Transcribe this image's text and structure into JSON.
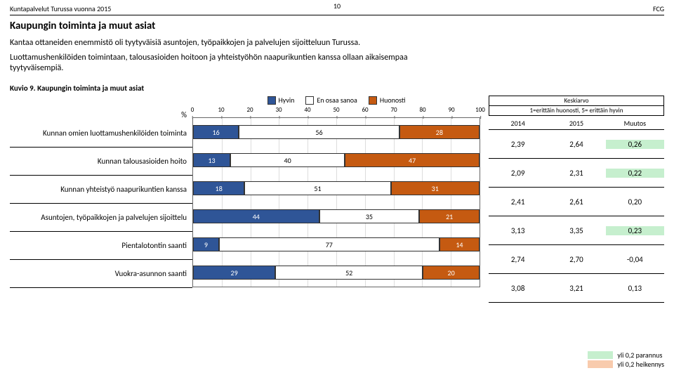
{
  "page_number": "10",
  "header_left": "Kuntapalvelut Turussa vuonna 2015",
  "header_right": "FCG",
  "title": "Kaupungin toiminta ja muut asiat",
  "intro1": "Kantaa ottaneiden enemmistö oli tyytyväisiä  asuntojen, työpaikkojen ja palvelujen sijoitteluun Turussa.",
  "intro2": "Luottamushenkilöiden toimintaan, talousasioiden hoitoon ja yhteistyöhön naapurikuntien kanssa ollaan aikaisempaa tyytyväisempiä.",
  "kuvio": "Kuvio 9. Kaupungin toiminta ja muut asiat",
  "pct_symbol": "%",
  "legend": {
    "l0": "Hyvin",
    "l1": "En osaa sanoa",
    "l2": "Huonosti",
    "c0": "#2f5597",
    "c1": "#ffffff",
    "c2": "#c55a11"
  },
  "axis": {
    "min": 0,
    "max": 100,
    "step": 10,
    "ticks": [
      "0",
      "10",
      "20",
      "30",
      "40",
      "50",
      "60",
      "70",
      "80",
      "90",
      "100"
    ]
  },
  "grid_color": "#dddddd",
  "ka": {
    "title": "Keskiarvo",
    "sub": "1=erittäin huonosti, 5= erittäin hyvin",
    "h0": "2014",
    "h1": "2015",
    "h2": "Muutos"
  },
  "rows": [
    {
      "label": "Kunnan omien luottamushenkilöiden toiminta",
      "v": [
        16,
        56,
        28
      ],
      "m": [
        "2,39",
        "2,64",
        "0,26"
      ],
      "hl": "green"
    },
    {
      "label": "Kunnan talousasioiden hoito",
      "v": [
        13,
        40,
        47
      ],
      "m": [
        "2,09",
        "2,31",
        "0,22"
      ],
      "hl": "green"
    },
    {
      "label": "Kunnan yhteistyö naapurikuntien kanssa",
      "v": [
        18,
        51,
        31
      ],
      "m": [
        "2,41",
        "2,61",
        "0,20"
      ],
      "hl": ""
    },
    {
      "label": "Asuntojen, työpaikkojen ja palvelujen sijoittelu",
      "v": [
        44,
        35,
        21
      ],
      "m": [
        "3,13",
        "3,35",
        "0,23"
      ],
      "hl": "green"
    },
    {
      "label": "Pientalotontin saanti",
      "v": [
        9,
        77,
        14
      ],
      "m": [
        "2,74",
        "2,70",
        "-0,04"
      ],
      "hl": ""
    },
    {
      "label": "Vuokra-asunnon saanti",
      "v": [
        29,
        52,
        20
      ],
      "m": [
        "3,08",
        "3,21",
        "0,13"
      ],
      "hl": ""
    }
  ],
  "legend2": {
    "green_label": "yli 0,2 parannus",
    "red_label": "yli 0,2 heikennys",
    "green": "#c6efce",
    "red": "#f8cbad"
  }
}
